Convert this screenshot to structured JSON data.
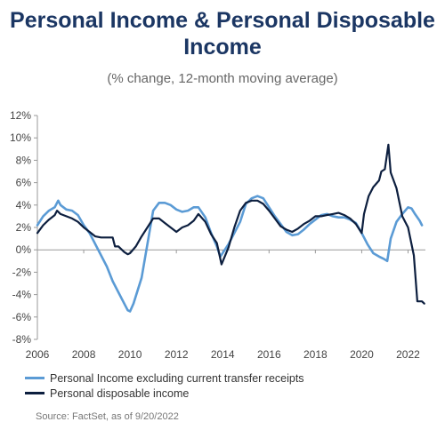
{
  "colors": {
    "title": "#1b3663",
    "series1": "#5b9bd5",
    "series2": "#0d1f3f",
    "axis": "#999999",
    "tick_text": "#444444"
  },
  "chart_data": {
    "type": "line",
    "title": "Personal Income & Personal Disposable Income",
    "subtitle": "(% change, 12-month moving average)",
    "xlabel": "",
    "ylabel": "",
    "xlim": [
      2006.0,
      2022.75
    ],
    "ylim": [
      -8,
      12
    ],
    "yticks": [
      -8,
      -6,
      -4,
      -2,
      0,
      2,
      4,
      6,
      8,
      10,
      12
    ],
    "ytick_labels": [
      "-8%",
      "-6%",
      "-4%",
      "-2%",
      "0%",
      "2%",
      "4%",
      "6%",
      "8%",
      "10%",
      "12%"
    ],
    "xticks": [
      2006,
      2008,
      2010,
      2012,
      2014,
      2016,
      2018,
      2020,
      2022
    ],
    "xtick_labels": [
      "2006",
      "2008",
      "2010",
      "2012",
      "2014",
      "2016",
      "2018",
      "2020",
      "2022"
    ],
    "grid": false,
    "legend_position": "bottom-left",
    "series": [
      {
        "name": "Personal Income excluding current transfer receipts",
        "color": "#5b9bd5",
        "x": [
          2006.0,
          2006.25,
          2006.5,
          2006.75,
          2006.9,
          2007.0,
          2007.25,
          2007.5,
          2007.75,
          2008.0,
          2008.25,
          2008.5,
          2008.75,
          2009.0,
          2009.25,
          2009.5,
          2009.75,
          2009.9,
          2010.0,
          2010.15,
          2010.5,
          2010.75,
          2011.0,
          2011.25,
          2011.5,
          2011.75,
          2012.0,
          2012.25,
          2012.5,
          2012.75,
          2012.95,
          2013.25,
          2013.5,
          2013.75,
          2013.9,
          2014.25,
          2014.5,
          2014.75,
          2015.0,
          2015.25,
          2015.5,
          2015.75,
          2016.0,
          2016.25,
          2016.5,
          2016.75,
          2017.0,
          2017.25,
          2017.5,
          2017.75,
          2018.0,
          2018.25,
          2018.5,
          2018.75,
          2019.0,
          2019.25,
          2019.5,
          2019.75,
          2020.0,
          2020.25,
          2020.5,
          2020.75,
          2020.95,
          2021.1,
          2021.25,
          2021.5,
          2021.75,
          2022.0,
          2022.15,
          2022.3,
          2022.5,
          2022.6
        ],
        "values": [
          2.2,
          3.0,
          3.5,
          3.8,
          4.4,
          4.0,
          3.6,
          3.5,
          3.1,
          2.2,
          1.5,
          0.5,
          -0.5,
          -1.5,
          -2.8,
          -3.8,
          -4.8,
          -5.4,
          -5.5,
          -4.8,
          -2.5,
          0.5,
          3.5,
          4.2,
          4.2,
          4.0,
          3.6,
          3.4,
          3.5,
          3.8,
          3.8,
          2.9,
          1.5,
          0.3,
          -0.6,
          0.5,
          1.5,
          2.5,
          4.1,
          4.6,
          4.8,
          4.6,
          3.8,
          3.0,
          2.3,
          1.6,
          1.3,
          1.4,
          1.8,
          2.3,
          2.7,
          3.1,
          3.2,
          3.0,
          2.9,
          2.9,
          2.7,
          2.4,
          1.5,
          0.5,
          -0.3,
          -0.6,
          -0.8,
          -1.0,
          1.0,
          2.5,
          3.2,
          3.8,
          3.7,
          3.2,
          2.6,
          2.2
        ]
      },
      {
        "name": "Personal disposable income",
        "color": "#0d1f3f",
        "x": [
          2006.0,
          2006.25,
          2006.5,
          2006.75,
          2006.85,
          2007.0,
          2007.25,
          2007.5,
          2007.75,
          2008.0,
          2008.25,
          2008.5,
          2008.75,
          2009.0,
          2009.25,
          2009.35,
          2009.5,
          2009.75,
          2009.9,
          2010.0,
          2010.25,
          2010.5,
          2010.75,
          2011.0,
          2011.25,
          2011.5,
          2011.75,
          2012.0,
          2012.25,
          2012.5,
          2012.75,
          2012.95,
          2013.25,
          2013.5,
          2013.75,
          2013.95,
          2014.25,
          2014.5,
          2014.75,
          2015.0,
          2015.25,
          2015.5,
          2015.75,
          2016.0,
          2016.25,
          2016.5,
          2016.75,
          2017.0,
          2017.25,
          2017.5,
          2017.75,
          2018.0,
          2018.25,
          2018.5,
          2018.75,
          2019.0,
          2019.25,
          2019.5,
          2019.75,
          2020.0,
          2020.1,
          2020.3,
          2020.5,
          2020.75,
          2020.85,
          2021.0,
          2021.15,
          2021.25,
          2021.5,
          2021.75,
          2022.0,
          2022.15,
          2022.25,
          2022.4,
          2022.5,
          2022.6,
          2022.7
        ],
        "values": [
          1.5,
          2.2,
          2.7,
          3.1,
          3.5,
          3.2,
          3.0,
          2.8,
          2.5,
          2.0,
          1.6,
          1.2,
          1.1,
          1.1,
          1.1,
          0.3,
          0.3,
          -0.2,
          -0.4,
          -0.3,
          0.3,
          1.2,
          2.0,
          2.8,
          2.8,
          2.4,
          2.0,
          1.6,
          2.0,
          2.2,
          2.6,
          3.2,
          2.5,
          1.4,
          0.6,
          -1.3,
          0.2,
          2.0,
          3.5,
          4.2,
          4.4,
          4.4,
          4.1,
          3.5,
          2.8,
          2.1,
          1.8,
          1.6,
          1.9,
          2.3,
          2.6,
          3.0,
          3.0,
          3.1,
          3.2,
          3.3,
          3.1,
          2.8,
          2.3,
          1.5,
          3.2,
          4.8,
          5.6,
          6.2,
          7.0,
          7.2,
          9.4,
          6.9,
          5.5,
          3.0,
          2.0,
          0.5,
          -0.5,
          -4.6,
          -4.6,
          -4.6,
          -4.8
        ]
      }
    ],
    "source": "Source: FactSet, as of 9/20/2022"
  }
}
